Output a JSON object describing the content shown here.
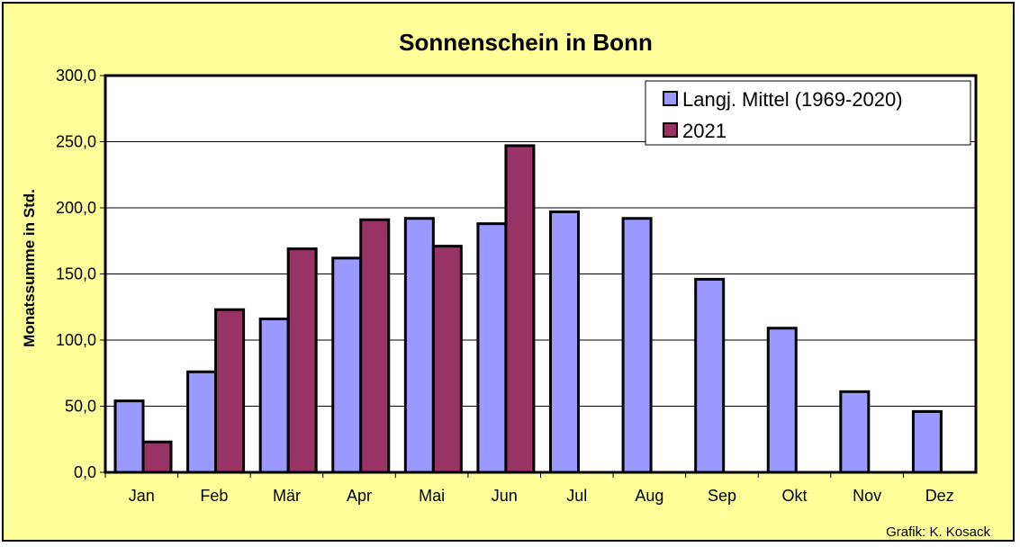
{
  "chart_data": {
    "type": "bar",
    "title": "Sonnenschein in Bonn",
    "ylabel": "Monatssumme in Std.",
    "xlabel": "",
    "ylim": [
      0,
      300
    ],
    "yticks": [
      0,
      50,
      100,
      150,
      200,
      250,
      300
    ],
    "ytick_labels": [
      "0,0",
      "50,0",
      "100,0",
      "150,0",
      "200,0",
      "250,0",
      "300,0"
    ],
    "categories": [
      "Jan",
      "Feb",
      "Mär",
      "Apr",
      "Mai",
      "Jun",
      "Jul",
      "Aug",
      "Sep",
      "Okt",
      "Nov",
      "Dez"
    ],
    "series": [
      {
        "name": "Langj. Mittel (1969-2020)",
        "color": "#9999ff",
        "values": [
          54,
          76,
          116,
          162,
          192,
          188,
          197,
          192,
          146,
          109,
          61,
          46
        ]
      },
      {
        "name": "2021",
        "color": "#993366",
        "values": [
          23,
          123,
          169,
          191,
          171,
          247,
          null,
          null,
          null,
          null,
          null,
          null
        ]
      }
    ],
    "grid": true,
    "legend_position": "top-right",
    "background_color": "#ffff99",
    "plot_background_color": "#ffffff"
  },
  "credit": "Grafik:  K. Kosack"
}
